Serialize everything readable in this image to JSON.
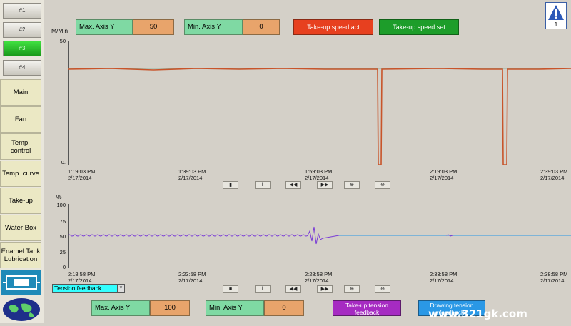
{
  "nav": {
    "screen_buttons": [
      "#1",
      "#2",
      "#3",
      "#4"
    ],
    "active_screen": "#3",
    "items": [
      "Main",
      "Fan",
      "Temp. control",
      "Temp. curve",
      "Take-up",
      "Water Box",
      "Enamel Tank Lubrication"
    ]
  },
  "top": {
    "max_label": "Max. Axis Y",
    "max_value": "50",
    "min_label": "Min. Axis Y",
    "min_value": "0",
    "act_button": "Take-up speed act",
    "set_button": "Take-up speed set",
    "warning_count": "1"
  },
  "chart1": {
    "unit": "M/Min",
    "y_ticks": [
      "50",
      "0."
    ],
    "time_labels": [
      {
        "time": "1:19:03 PM",
        "date": "2/17/2014"
      },
      {
        "time": "1:39:03 PM",
        "date": "2/17/2014"
      },
      {
        "time": "1:59:03 PM",
        "date": "2/17/2014"
      },
      {
        "time": "2:19:03 PM",
        "date": "2/17/2014"
      },
      {
        "time": "2:39:03 PM",
        "date": "2/17/2014"
      }
    ]
  },
  "chart2": {
    "unit": "%",
    "y_ticks": [
      "100",
      "75",
      "50",
      "25",
      "0"
    ],
    "time_labels": [
      {
        "time": "2:18:58 PM",
        "date": "2/17/2014"
      },
      {
        "time": "2:23:58 PM",
        "date": "2/17/2014"
      },
      {
        "time": "2:28:58 PM",
        "date": "2/17/2014"
      },
      {
        "time": "2:33:58 PM",
        "date": "2/17/2014"
      },
      {
        "time": "2:38:58 PM",
        "date": "2/17/2014"
      }
    ]
  },
  "bottom": {
    "dropdown_value": "Tension feedback",
    "max_label": "Max. Axis Y",
    "max_value": "100",
    "min_label": "Min. Axis Y",
    "min_value": "0",
    "takeup_button": "Take-up tension feedback",
    "drawing_button": "Drawing tension feedback"
  },
  "watermark": "www.321gk.com",
  "colors": {
    "speed_act": "#c8542a",
    "tension_feedback": "#7b3ed6",
    "drawing_feedback": "#2a98e6",
    "active_screen": "#1a9a1a"
  }
}
